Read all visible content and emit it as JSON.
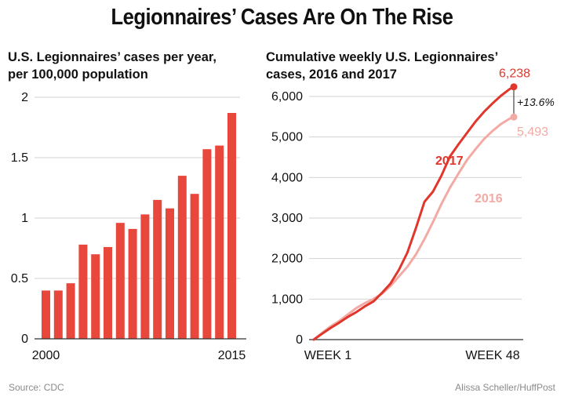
{
  "title": "Legionnaires’ Cases Are On The Rise",
  "footer": {
    "source": "Source: CDC",
    "credit": "Alissa Scheller/HuffPost"
  },
  "colors": {
    "bar": "#e8473c",
    "line2017": "#e0362c",
    "line2016": "#f4aaa4",
    "grid": "#d2d2d2",
    "axis": "#333333"
  },
  "chart_data": [
    {
      "type": "bar",
      "title": "U.S. Legionnaires’ cases per year, per 100,000 population",
      "title_lines": [
        "U.S. Legionnaires’ cases per year,",
        "per 100,000 population"
      ],
      "categories": [
        "2000",
        "2001",
        "2002",
        "2003",
        "2004",
        "2005",
        "2006",
        "2007",
        "2008",
        "2009",
        "2010",
        "2011",
        "2012",
        "2013",
        "2014",
        "2015"
      ],
      "x_tick_labels": [
        "2000",
        "2015"
      ],
      "values": [
        0.4,
        0.4,
        0.46,
        0.78,
        0.7,
        0.76,
        0.96,
        0.91,
        1.03,
        1.15,
        1.08,
        1.35,
        1.2,
        1.57,
        1.6,
        1.87
      ],
      "ylim": [
        0,
        2
      ],
      "y_ticks": [
        0,
        0.5,
        1,
        1.5,
        2
      ],
      "y_tick_labels": [
        "0",
        "0.5",
        "1",
        "1.5",
        "2"
      ],
      "grid": true
    },
    {
      "type": "line",
      "title": "Cumulative weekly U.S. Legionnaires’ cases, 2016 and 2017",
      "title_lines": [
        "Cumulative weekly U.S. Legionnaires’",
        "cases, 2016 and 2017"
      ],
      "x_tick_labels": [
        "WEEK 1",
        "WEEK 48"
      ],
      "xlim": [
        1,
        48
      ],
      "ylim": [
        0,
        6000
      ],
      "y_ticks": [
        0,
        1000,
        2000,
        3000,
        4000,
        5000,
        6000
      ],
      "y_tick_labels": [
        "0",
        "1,000",
        "2,000",
        "3,000",
        "4,000",
        "5,000",
        "6,000"
      ],
      "grid": true,
      "series": [
        {
          "name": "2017",
          "label": "2017",
          "end_label": "6,238",
          "x": [
            1,
            3,
            5,
            7,
            9,
            11,
            13,
            15,
            17,
            19,
            21,
            23,
            25,
            27,
            29,
            31,
            33,
            35,
            37,
            39,
            41,
            43,
            45,
            47,
            48
          ],
          "values": [
            0,
            150,
            290,
            420,
            560,
            680,
            820,
            940,
            1150,
            1380,
            1720,
            2150,
            2750,
            3400,
            3650,
            4050,
            4520,
            4820,
            5100,
            5380,
            5620,
            5830,
            6020,
            6180,
            6238
          ]
        },
        {
          "name": "2016",
          "label": "2016",
          "end_label": "5,493",
          "x": [
            1,
            3,
            5,
            7,
            9,
            11,
            13,
            15,
            17,
            19,
            21,
            23,
            25,
            27,
            29,
            31,
            33,
            35,
            37,
            39,
            41,
            43,
            45,
            47,
            48
          ],
          "values": [
            0,
            170,
            330,
            460,
            620,
            780,
            900,
            1000,
            1130,
            1320,
            1560,
            1800,
            2100,
            2480,
            2900,
            3350,
            3750,
            4100,
            4430,
            4700,
            4950,
            5150,
            5320,
            5450,
            5493
          ]
        }
      ],
      "annotation": "+13.6%"
    }
  ]
}
